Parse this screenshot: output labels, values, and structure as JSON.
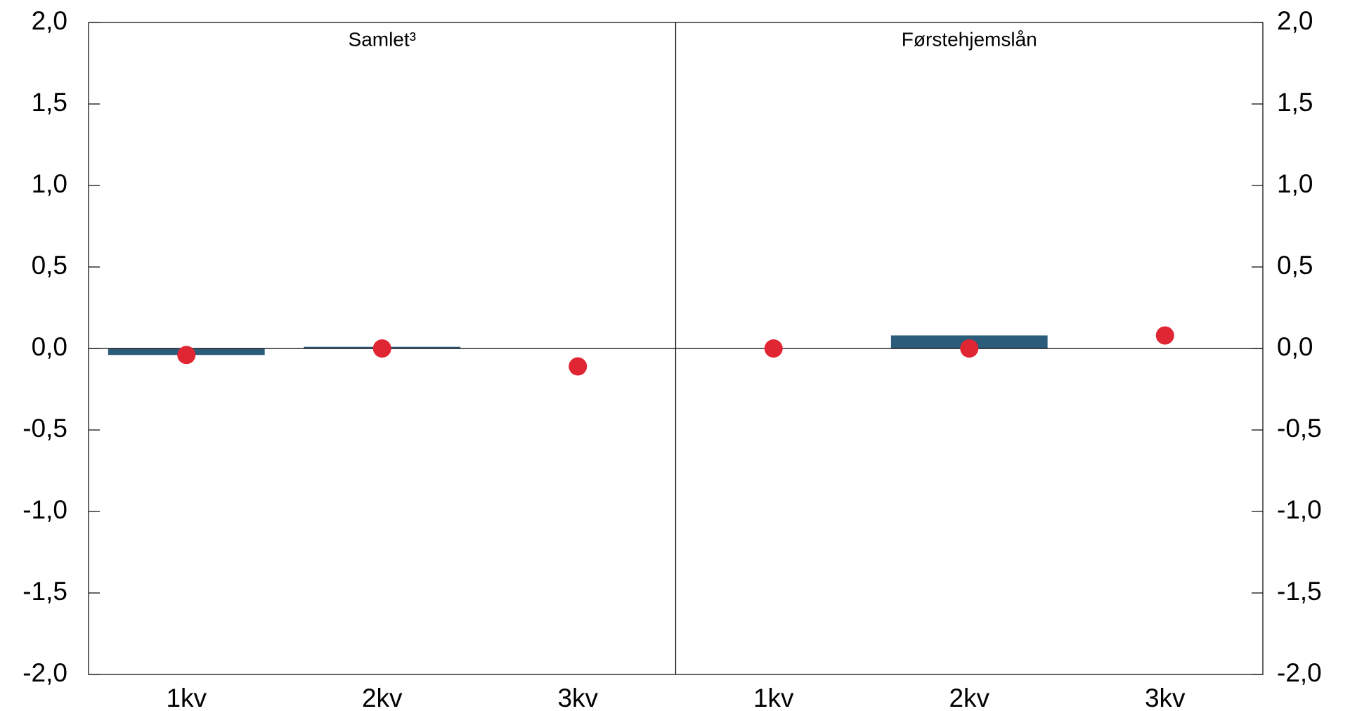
{
  "chart_data": [
    {
      "type": "bar_dot",
      "subtitle": "Samlet³",
      "categories": [
        "1kv",
        "2kv",
        "3kv"
      ],
      "series": [
        {
          "type": "bar",
          "color": "#2b5c7a",
          "values": [
            -0.04,
            0.01,
            null
          ]
        },
        {
          "type": "dot",
          "color": "#e02633",
          "values": [
            -0.04,
            0.0,
            -0.11
          ]
        }
      ],
      "ylim": [
        -2,
        2
      ],
      "yticks": [
        {
          "value": 2,
          "label": "2,0"
        },
        {
          "value": 1.5,
          "label": "1,5"
        },
        {
          "value": 1,
          "label": "1,0"
        },
        {
          "value": 0.5,
          "label": "0,5"
        },
        {
          "value": 0,
          "label": "0,0"
        },
        {
          "value": -0.5,
          "label": "-0,5"
        },
        {
          "value": -1,
          "label": "-1,0"
        },
        {
          "value": -1.5,
          "label": "-1,5"
        },
        {
          "value": -2,
          "label": "-2,0"
        }
      ]
    },
    {
      "type": "bar_dot",
      "subtitle": "Førstehjemslån",
      "categories": [
        "1kv",
        "2kv",
        "3kv"
      ],
      "series": [
        {
          "type": "bar",
          "color": "#2b5c7a",
          "values": [
            null,
            0.08,
            null
          ]
        },
        {
          "type": "dot",
          "color": "#e02633",
          "values": [
            0.0,
            0.0,
            0.08
          ]
        }
      ],
      "ylim": [
        -2,
        2
      ],
      "yticks": [
        {
          "value": 2,
          "label": "2,0"
        },
        {
          "value": 1.5,
          "label": "1,5"
        },
        {
          "value": 1,
          "label": "1,0"
        },
        {
          "value": 0.5,
          "label": "0,5"
        },
        {
          "value": 0,
          "label": "0,0"
        },
        {
          "value": -0.5,
          "label": "-0,5"
        },
        {
          "value": -1,
          "label": "-1,0"
        },
        {
          "value": -1.5,
          "label": "-1,5"
        },
        {
          "value": -2,
          "label": "-2,0"
        }
      ]
    }
  ]
}
